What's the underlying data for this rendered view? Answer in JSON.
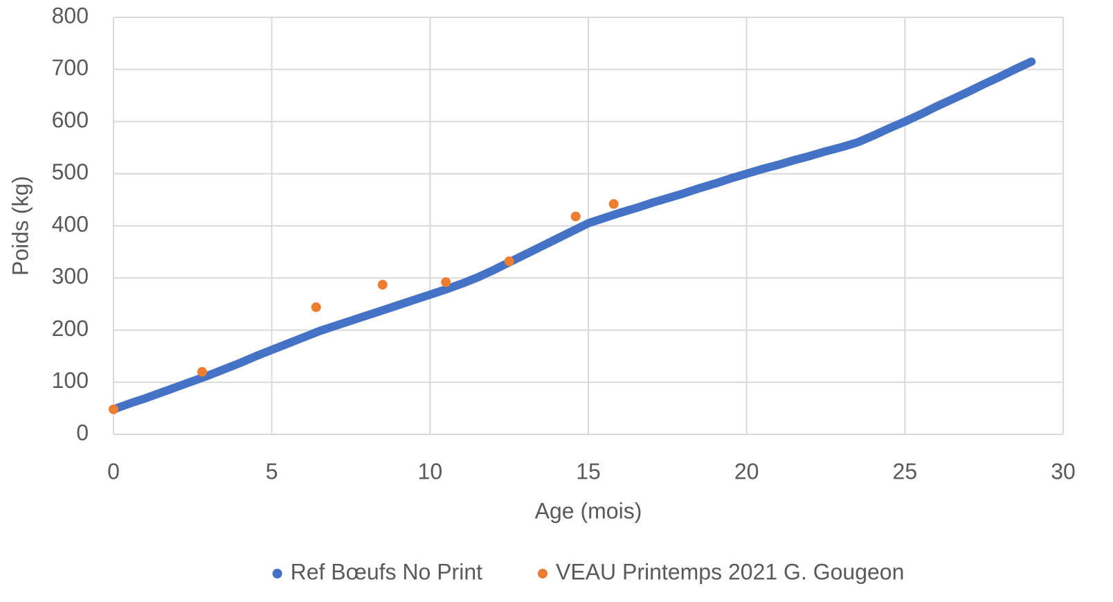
{
  "chart_data": {
    "type": "scatter",
    "x_label": "Age (mois)",
    "y_label": "Poids (kg)",
    "xlim": [
      0,
      30
    ],
    "xticks": [
      0,
      5,
      10,
      15,
      20,
      25,
      30
    ],
    "ylim": [
      0,
      800
    ],
    "yticks": [
      0,
      100,
      200,
      300,
      400,
      500,
      600,
      700,
      800
    ],
    "grid": true,
    "legend": "bottom",
    "series": [
      {
        "name": "Ref Bœufs No Print",
        "color": "#4472c4",
        "x": [
          0,
          0.5,
          1,
          1.5,
          2,
          2.5,
          3,
          3.5,
          4,
          4.5,
          5,
          5.5,
          6,
          6.5,
          7,
          7.5,
          8,
          8.5,
          9,
          9.5,
          10,
          10.5,
          11,
          11.5,
          12,
          12.5,
          13,
          13.5,
          14,
          14.5,
          15,
          15.5,
          16,
          16.5,
          17,
          17.5,
          18,
          18.5,
          19,
          19.5,
          20,
          20.5,
          21,
          21.5,
          22,
          22.5,
          23,
          23.5,
          24,
          24.5,
          25,
          25.5,
          26,
          26.5,
          27,
          27.5,
          28,
          28.5,
          29
        ],
        "values": [
          48,
          59,
          69,
          80,
          91,
          102,
          113,
          125,
          137,
          150,
          162,
          174,
          186,
          198,
          208,
          218,
          228,
          238,
          248,
          258,
          268,
          278,
          289,
          301,
          315,
          330,
          345,
          360,
          375,
          390,
          405,
          415,
          425,
          434,
          444,
          453,
          462,
          472,
          481,
          491,
          500,
          509,
          517,
          526,
          534,
          543,
          551,
          560,
          573,
          587,
          600,
          614,
          629,
          643,
          657,
          672,
          686,
          701,
          715
        ]
      },
      {
        "name": "VEAU Printemps 2021 G. Gougeon",
        "color": "#ed7d31",
        "x": [
          0,
          2.8,
          6.4,
          8.5,
          10.5,
          12.5,
          14.6,
          15.8
        ],
        "values": [
          48,
          120,
          244,
          287,
          292,
          332,
          418,
          442
        ]
      }
    ]
  }
}
